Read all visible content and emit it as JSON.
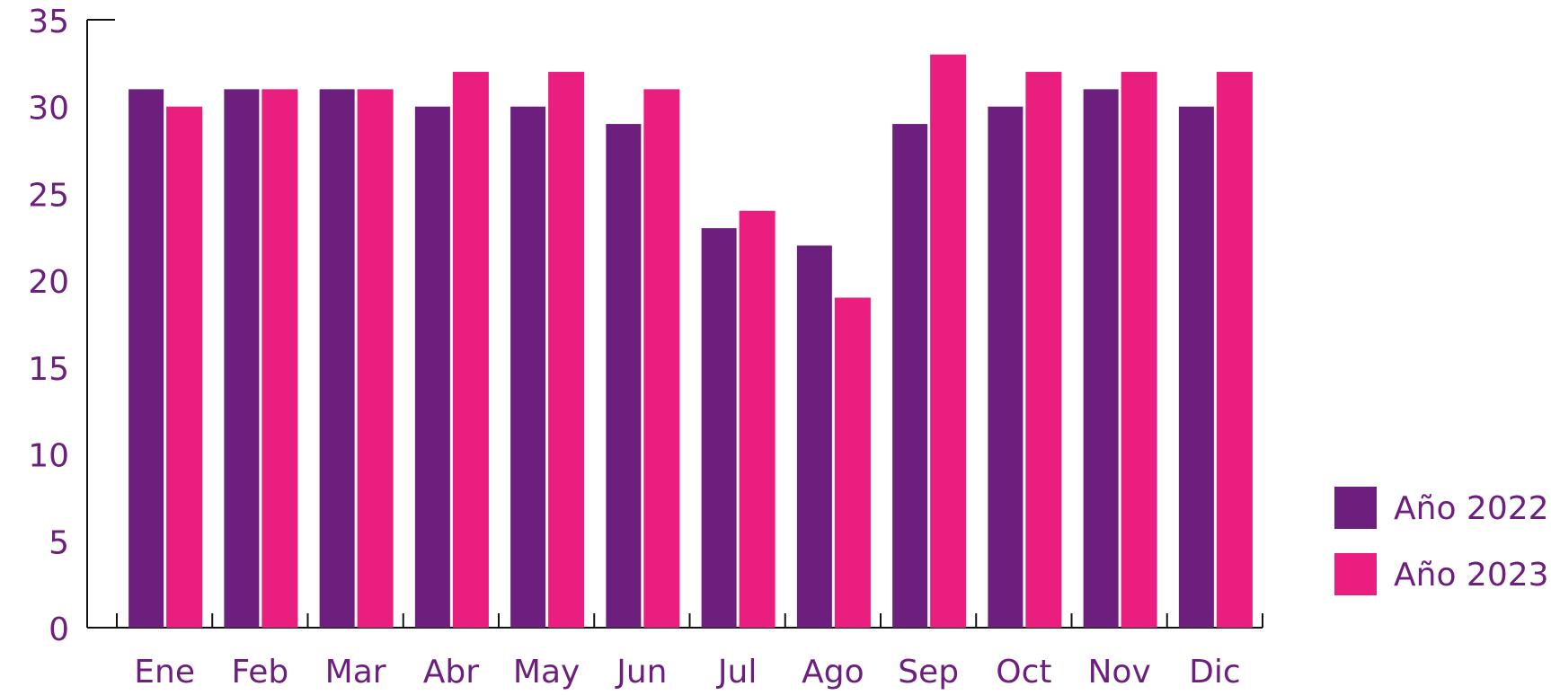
{
  "chart_data": {
    "type": "bar",
    "categories": [
      "Ene",
      "Feb",
      "Mar",
      "Abr",
      "May",
      "Jun",
      "Jul",
      "Ago",
      "Sep",
      "Oct",
      "Nov",
      "Dic"
    ],
    "series": [
      {
        "name": "Año 2022",
        "color": "#6d1f7e",
        "values": [
          31,
          31,
          31,
          30,
          30,
          29,
          23,
          22,
          29,
          30,
          31,
          30
        ]
      },
      {
        "name": "Año 2023",
        "color": "#e91e7f",
        "values": [
          30,
          31,
          31,
          32,
          32,
          31,
          24,
          19,
          33,
          32,
          32,
          32
        ]
      }
    ],
    "ylim": [
      0,
      35
    ],
    "yticks": [
      0,
      5,
      10,
      15,
      20,
      25,
      30,
      35
    ],
    "grid": false,
    "legend": "right"
  }
}
